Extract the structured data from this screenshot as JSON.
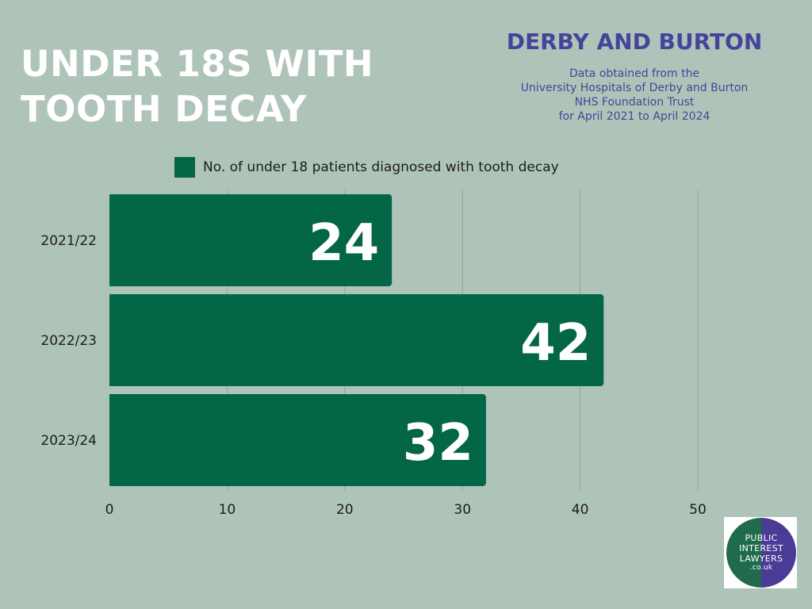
{
  "title": {
    "line1": "UNDER 18S WITH",
    "line2": "TOOTH DECAY"
  },
  "region": "DERBY AND BURTON",
  "source": [
    "Data obtained from the",
    "University Hospitals of Derby and Burton",
    "NHS Foundation Trust",
    "for April 2021 to April 2024"
  ],
  "colors": {
    "bar": "#036647",
    "background": "#afc4b9",
    "heading": "#46449a",
    "grid": "#8fa69a"
  },
  "logo": {
    "line1": "PUBLIC",
    "line2": "INTEREST",
    "line3": "LAWYERS",
    "line4": ".co.uk"
  },
  "chart_data": {
    "type": "bar",
    "orientation": "horizontal",
    "categories": [
      "2021/22",
      "2022/23",
      "2023/24"
    ],
    "series": [
      {
        "name": "No. of under 18 patients diagnosed with tooth decay",
        "values": [
          24,
          42,
          32
        ]
      }
    ],
    "xlim": [
      0,
      50
    ],
    "xticks": [
      0,
      10,
      20,
      30,
      40,
      50
    ],
    "grid": true,
    "legend_position": "top",
    "data_labels": true
  }
}
